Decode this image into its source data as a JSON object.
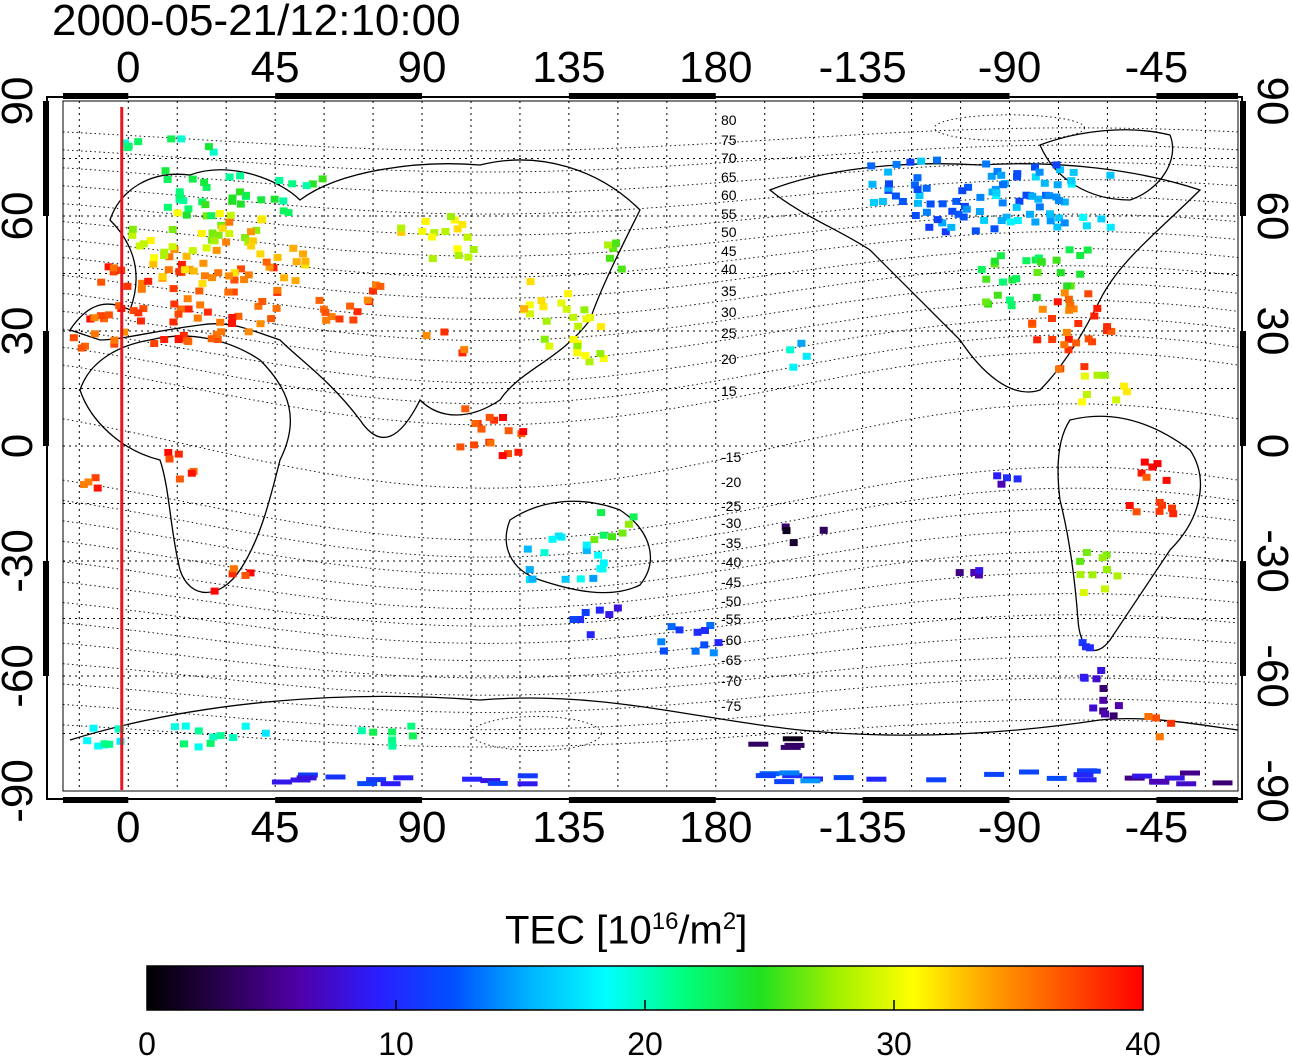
{
  "title": "2000-05-21/12:10:00",
  "map": {
    "projection": "geomagnetic cylindrical, longitude axis wraps from -20 to 340 (shown as 0 ... 180, -135 ... -45)",
    "top_x_ticks": [
      "0",
      "45",
      "90",
      "135",
      "180",
      "-135",
      "-90",
      "-45"
    ],
    "bottom_x_ticks": [
      "0",
      "45",
      "90",
      "135",
      "180",
      "-135",
      "-90",
      "-45"
    ],
    "left_y_ticks": [
      "90",
      "60",
      "30",
      "0",
      "-30",
      "-60",
      "-90"
    ],
    "right_y_ticks": [
      "90",
      "60",
      "30",
      "0",
      "-30",
      "-60",
      "-90"
    ],
    "grid": true,
    "marker_line_longitude": -2,
    "marker_line_color": "#e8141e",
    "contour_labels_north": [
      "80",
      "75",
      "70",
      "65",
      "60",
      "55",
      "50",
      "45",
      "40",
      "35",
      "30",
      "25",
      "20",
      "15"
    ],
    "contour_labels_south": [
      "-15",
      "-20",
      "-25",
      "-30",
      "-35",
      "-40",
      "-45",
      "-50",
      "-55",
      "-60",
      "-65",
      "-70",
      "-75"
    ]
  },
  "colorbar": {
    "title_prefix": "TEC  [10",
    "title_exp1": "16",
    "title_mid": "/m",
    "title_exp2": "2",
    "title_suffix": "]",
    "min": 0,
    "max": 40,
    "tick_labels": [
      "0",
      "10",
      "20",
      "30",
      "40"
    ],
    "colors": [
      "#000000",
      "#2a0050",
      "#5000a8",
      "#2a1eff",
      "#0050ff",
      "#00b4ff",
      "#00ffff",
      "#00ff80",
      "#20e020",
      "#a0f000",
      "#ffff00",
      "#ffa000",
      "#ff5000",
      "#ff0000"
    ]
  },
  "tec_patches": [
    {
      "lon": -10,
      "lat": 38,
      "w": 55,
      "h": 22,
      "v": 37
    },
    {
      "lon": 5,
      "lat": 48,
      "w": 50,
      "h": 10,
      "v": 34
    },
    {
      "lon": 0,
      "lat": 56,
      "w": 40,
      "h": 12,
      "v": 29
    },
    {
      "lon": 10,
      "lat": 67,
      "w": 50,
      "h": 12,
      "v": 23
    },
    {
      "lon": -5,
      "lat": 80,
      "w": 30,
      "h": 5,
      "v": 22
    },
    {
      "lon": 25,
      "lat": 56,
      "w": 15,
      "h": 10,
      "v": 33
    },
    {
      "lon": 55,
      "lat": 38,
      "w": 25,
      "h": 10,
      "v": 37
    },
    {
      "lon": 80,
      "lat": 55,
      "w": 25,
      "h": 12,
      "v": 30
    },
    {
      "lon": 120,
      "lat": 40,
      "w": 15,
      "h": 12,
      "v": 31
    },
    {
      "lon": 125,
      "lat": 30,
      "w": 20,
      "h": 15,
      "v": 29
    },
    {
      "lon": 145,
      "lat": 50,
      "w": 8,
      "h": 12,
      "v": 26
    },
    {
      "lon": 90,
      "lat": 28,
      "w": 12,
      "h": 6,
      "v": 37
    },
    {
      "lon": 100,
      "lat": 5,
      "w": 20,
      "h": 15,
      "v": 38
    },
    {
      "lon": -18,
      "lat": 30,
      "w": 10,
      "h": 10,
      "v": 37
    },
    {
      "lon": -15,
      "lat": -10,
      "w": 6,
      "h": 8,
      "v": 37
    },
    {
      "lon": 10,
      "lat": -5,
      "w": 10,
      "h": 10,
      "v": 38
    },
    {
      "lon": 25,
      "lat": -35,
      "w": 12,
      "h": 8,
      "v": 38
    },
    {
      "lon": 120,
      "lat": -28,
      "w": 25,
      "h": 12,
      "v": 17
    },
    {
      "lon": 135,
      "lat": -45,
      "w": 15,
      "h": 8,
      "v": 10
    },
    {
      "lon": 140,
      "lat": -20,
      "w": 15,
      "h": 8,
      "v": 25
    },
    {
      "lon": 160,
      "lat": -50,
      "w": 20,
      "h": 10,
      "v": 12
    },
    {
      "lon": -50,
      "lat": -72,
      "w": 10,
      "h": 6,
      "v": 37
    },
    {
      "lon": -15,
      "lat": -75,
      "w": 60,
      "h": 6,
      "v": 20
    },
    {
      "lon": 70,
      "lat": -75,
      "w": 20,
      "h": 6,
      "v": 21
    },
    {
      "lon": -175,
      "lat": -77,
      "w": 20,
      "h": 3,
      "v": 3
    },
    {
      "lon": -160,
      "lat": -22,
      "w": 12,
      "h": 6,
      "v": 3
    },
    {
      "lon": -108,
      "lat": -33,
      "w": 8,
      "h": 6,
      "v": 6
    },
    {
      "lon": -135,
      "lat": 70,
      "w": 60,
      "h": 12,
      "v": 14
    },
    {
      "lon": -120,
      "lat": 62,
      "w": 30,
      "h": 12,
      "v": 13
    },
    {
      "lon": -100,
      "lat": 65,
      "w": 40,
      "h": 15,
      "v": 16
    },
    {
      "lon": -100,
      "lat": 45,
      "w": 35,
      "h": 15,
      "v": 24
    },
    {
      "lon": -85,
      "lat": 35,
      "w": 25,
      "h": 15,
      "v": 37
    },
    {
      "lon": -80,
      "lat": 25,
      "w": 15,
      "h": 10,
      "v": 36
    },
    {
      "lon": -70,
      "lat": 15,
      "w": 15,
      "h": 10,
      "v": 30
    },
    {
      "lon": -160,
      "lat": 25,
      "w": 8,
      "h": 8,
      "v": 17
    },
    {
      "lon": -95,
      "lat": -5,
      "w": 8,
      "h": 10,
      "v": 8
    },
    {
      "lon": -55,
      "lat": -10,
      "w": 15,
      "h": 15,
      "v": 38
    },
    {
      "lon": -70,
      "lat": -30,
      "w": 12,
      "h": 15,
      "v": 28
    },
    {
      "lon": -70,
      "lat": -55,
      "w": 12,
      "h": 10,
      "v": 9
    },
    {
      "lon": -70,
      "lat": -66,
      "w": 15,
      "h": 8,
      "v": 6
    },
    {
      "lon": -100,
      "lat": -85,
      "w": 40,
      "h": 3,
      "v": 10
    },
    {
      "lon": -55,
      "lat": -86,
      "w": 60,
      "h": 3,
      "v": 6
    },
    {
      "lon": -170,
      "lat": -86,
      "w": 60,
      "h": 3,
      "v": 12
    },
    {
      "lon": 60,
      "lat": -86,
      "w": 60,
      "h": 3,
      "v": 10
    },
    {
      "lon": 20,
      "lat": -86,
      "w": 40,
      "h": 2,
      "v": 10
    }
  ]
}
